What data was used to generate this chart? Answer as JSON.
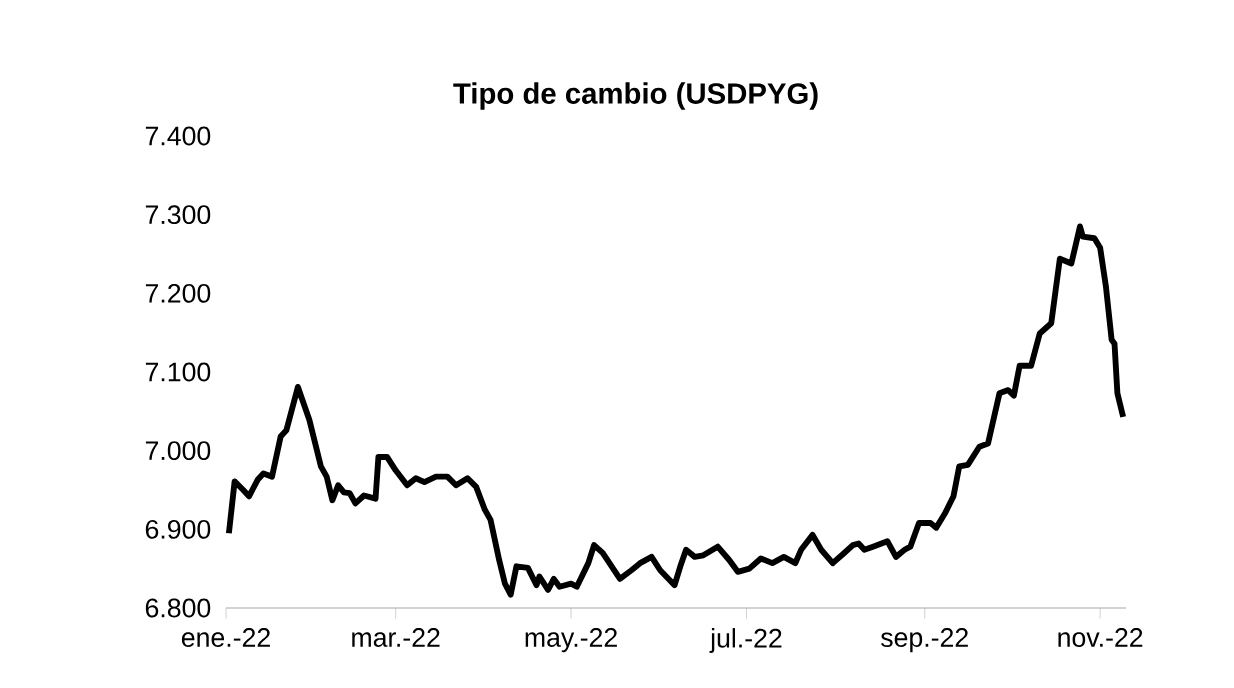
{
  "chart_data": {
    "type": "line",
    "title": "Tipo de cambio (USDPYG)",
    "color": "#000000",
    "line_style": "solid",
    "marker": "none",
    "grid": false,
    "xlim": [
      "2022-01-01",
      "2022-11-10"
    ],
    "xticks": [
      {
        "value": "2022-01-01",
        "label": "ene.-22"
      },
      {
        "value": "2022-03-01",
        "label": "mar.-22"
      },
      {
        "value": "2022-05-01",
        "label": "may.-22"
      },
      {
        "value": "2022-07-01",
        "label": "jul.-22"
      },
      {
        "value": "2022-09-01",
        "label": "sep.-22"
      },
      {
        "value": "2022-11-01",
        "label": "nov.-22"
      }
    ],
    "ylim": [
      6.8,
      7.4
    ],
    "yticks": [
      {
        "value": 6.8,
        "label": "6.800"
      },
      {
        "value": 6.9,
        "label": "6.900"
      },
      {
        "value": 7.0,
        "label": "7.000"
      },
      {
        "value": 7.1,
        "label": "7.100"
      },
      {
        "value": 7.2,
        "label": "7.200"
      },
      {
        "value": 7.3,
        "label": "7.300"
      },
      {
        "value": 7.4,
        "label": "7.400"
      }
    ],
    "x": [
      "2022-01-02",
      "2022-01-04",
      "2022-01-07",
      "2022-01-09",
      "2022-01-12",
      "2022-01-14",
      "2022-01-17",
      "2022-01-20",
      "2022-01-22",
      "2022-01-26",
      "2022-01-30",
      "2022-02-03",
      "2022-02-05",
      "2022-02-07",
      "2022-02-09",
      "2022-02-11",
      "2022-02-13",
      "2022-02-15",
      "2022-02-18",
      "2022-02-22",
      "2022-02-23",
      "2022-02-26",
      "2022-03-01",
      "2022-03-05",
      "2022-03-08",
      "2022-03-11",
      "2022-03-15",
      "2022-03-19",
      "2022-03-22",
      "2022-03-26",
      "2022-03-29",
      "2022-04-01",
      "2022-04-03",
      "2022-04-06",
      "2022-04-08",
      "2022-04-10",
      "2022-04-12",
      "2022-04-16",
      "2022-04-19",
      "2022-04-20",
      "2022-04-23",
      "2022-04-25",
      "2022-04-27",
      "2022-05-01",
      "2022-05-03",
      "2022-05-07",
      "2022-05-09",
      "2022-05-12",
      "2022-05-18",
      "2022-05-22",
      "2022-05-25",
      "2022-05-29",
      "2022-06-01",
      "2022-06-06",
      "2022-06-08",
      "2022-06-10",
      "2022-06-13",
      "2022-06-16",
      "2022-06-21",
      "2022-06-25",
      "2022-06-28",
      "2022-07-02",
      "2022-07-06",
      "2022-07-10",
      "2022-07-14",
      "2022-07-18",
      "2022-07-20",
      "2022-07-24",
      "2022-07-27",
      "2022-07-31",
      "2022-08-04",
      "2022-08-07",
      "2022-08-09",
      "2022-08-11",
      "2022-08-14",
      "2022-08-19",
      "2022-08-22",
      "2022-08-25",
      "2022-08-27",
      "2022-08-30",
      "2022-09-03",
      "2022-09-05",
      "2022-09-08",
      "2022-09-11",
      "2022-09-13",
      "2022-09-16",
      "2022-09-20",
      "2022-09-23",
      "2022-09-27",
      "2022-09-30",
      "2022-10-02",
      "2022-10-04",
      "2022-10-08",
      "2022-10-11",
      "2022-10-15",
      "2022-10-18",
      "2022-10-22",
      "2022-10-25",
      "2022-10-26",
      "2022-10-30",
      "2022-11-01",
      "2022-11-03",
      "2022-11-05",
      "2022-11-06",
      "2022-11-07",
      "2022-11-09"
    ],
    "values": [
      6.895,
      6.961,
      6.95,
      6.942,
      6.963,
      6.971,
      6.967,
      7.018,
      7.026,
      7.081,
      7.039,
      6.98,
      6.967,
      6.937,
      6.956,
      6.947,
      6.946,
      6.933,
      6.943,
      6.939,
      6.992,
      6.992,
      6.975,
      6.956,
      6.965,
      6.96,
      6.967,
      6.967,
      6.956,
      6.965,
      6.954,
      6.925,
      6.912,
      6.861,
      6.831,
      6.817,
      6.853,
      6.851,
      6.829,
      6.84,
      6.823,
      6.837,
      6.827,
      6.831,
      6.827,
      6.857,
      6.88,
      6.87,
      6.837,
      6.848,
      6.857,
      6.865,
      6.848,
      6.829,
      6.853,
      6.874,
      6.865,
      6.867,
      6.878,
      6.861,
      6.846,
      6.85,
      6.863,
      6.857,
      6.865,
      6.857,
      6.874,
      6.893,
      6.874,
      6.857,
      6.87,
      6.88,
      6.882,
      6.874,
      6.878,
      6.885,
      6.865,
      6.874,
      6.878,
      6.908,
      6.908,
      6.902,
      6.92,
      6.942,
      6.98,
      6.982,
      7.005,
      7.009,
      7.073,
      7.077,
      7.07,
      7.108,
      7.108,
      7.149,
      7.162,
      7.244,
      7.238,
      7.285,
      7.272,
      7.27,
      7.258,
      7.209,
      7.141,
      7.136,
      7.073,
      7.043
    ]
  }
}
